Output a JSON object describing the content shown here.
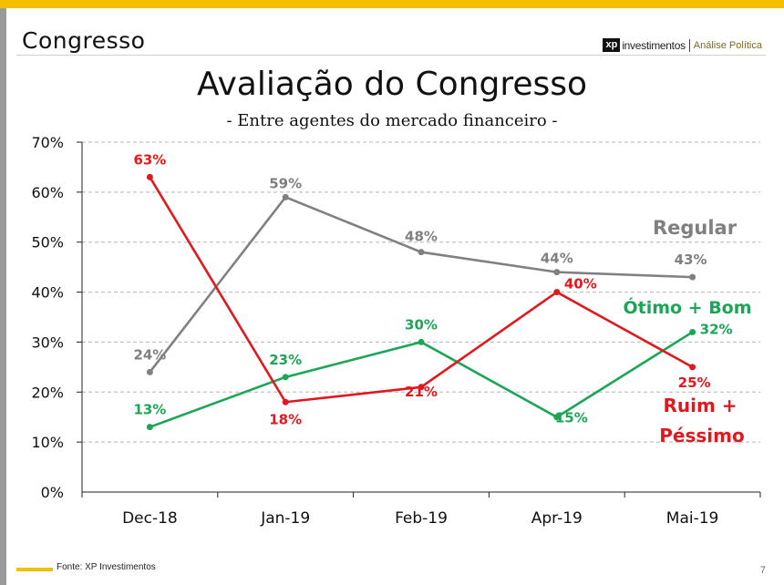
{
  "header": {
    "section_title": "Congresso",
    "brand_logo": "xp",
    "brand_name": "investimentos",
    "brand_unit": "Análise Política"
  },
  "footer": {
    "source": "Fonte: XP Investimentos",
    "page_number": "7"
  },
  "colors": {
    "accent": "#f2c000",
    "regular": "#808080",
    "otimo_bom": "#1aa654",
    "ruim_pessimo": "#e0191e"
  },
  "chart_data": {
    "type": "line",
    "title": "Avaliação do Congresso",
    "subtitle": "- Entre agentes do mercado financeiro -",
    "categories": [
      "Dec-18",
      "Jan-19",
      "Feb-19",
      "Apr-19",
      "Mai-19"
    ],
    "ylim": [
      0,
      70
    ],
    "yticks": [
      0,
      10,
      20,
      30,
      40,
      50,
      60,
      70
    ],
    "ytick_labels": [
      "0%",
      "10%",
      "20%",
      "30%",
      "40%",
      "50%",
      "60%",
      "70%"
    ],
    "grid": true,
    "series": [
      {
        "name": "Regular",
        "color": "#808080",
        "values": [
          24,
          59,
          48,
          44,
          43
        ],
        "labels": [
          "24%",
          "59%",
          "48%",
          "44%",
          "43%"
        ]
      },
      {
        "name": "Ótimo + Bom",
        "color": "#1aa654",
        "values": [
          13,
          23,
          30,
          15,
          32
        ],
        "labels": [
          "13%",
          "23%",
          "30%",
          "15%",
          "32%"
        ]
      },
      {
        "name": "Ruim + Péssimo",
        "name_lines": [
          "Ruim +",
          "Péssimo"
        ],
        "color": "#e0191e",
        "values": [
          63,
          18,
          21,
          40,
          25
        ],
        "labels": [
          "63%",
          "18%",
          "21%",
          "40%",
          "25%"
        ]
      }
    ]
  }
}
